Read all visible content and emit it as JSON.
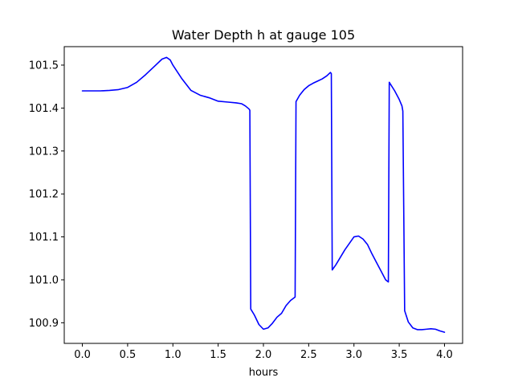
{
  "chart_data": {
    "type": "line",
    "title": "Water Depth h at gauge 105",
    "xlabel": "hours",
    "ylabel": "",
    "xlim": [
      -0.2,
      4.2
    ],
    "ylim": [
      100.852,
      101.543
    ],
    "grid": false,
    "legend": "none",
    "x_ticks": [
      0.0,
      0.5,
      1.0,
      1.5,
      2.0,
      2.5,
      3.0,
      3.5,
      4.0
    ],
    "x_tick_labels": [
      "0.0",
      "0.5",
      "1.0",
      "1.5",
      "2.0",
      "2.5",
      "3.0",
      "3.5",
      "4.0"
    ],
    "y_ticks": [
      100.9,
      101.0,
      101.1,
      101.2,
      101.3,
      101.4,
      101.5
    ],
    "y_tick_labels": [
      "100.9",
      "101.0",
      "101.1",
      "101.2",
      "101.3",
      "101.4",
      "101.5"
    ],
    "series": [
      {
        "color": "#0000ff",
        "x": [
          0.0,
          0.1,
          0.2,
          0.3,
          0.4,
          0.5,
          0.6,
          0.7,
          0.8,
          0.88,
          0.93,
          0.97,
          1.0,
          1.1,
          1.2,
          1.3,
          1.4,
          1.5,
          1.6,
          1.7,
          1.76,
          1.8,
          1.84,
          1.85,
          1.86,
          1.9,
          1.95,
          2.0,
          2.05,
          2.1,
          2.15,
          2.2,
          2.25,
          2.3,
          2.35,
          2.36,
          2.4,
          2.45,
          2.5,
          2.55,
          2.6,
          2.65,
          2.7,
          2.74,
          2.75,
          2.76,
          2.8,
          2.9,
          3.0,
          3.05,
          3.1,
          3.15,
          3.2,
          3.25,
          3.3,
          3.35,
          3.38,
          3.39,
          3.45,
          3.5,
          3.53,
          3.54,
          3.56,
          3.6,
          3.65,
          3.7,
          3.75,
          3.8,
          3.85,
          3.9,
          3.95,
          4.0
        ],
        "y": [
          101.44,
          101.44,
          101.44,
          101.441,
          101.443,
          101.448,
          101.46,
          101.478,
          101.498,
          101.514,
          101.518,
          101.512,
          101.5,
          101.468,
          101.441,
          101.43,
          101.424,
          101.416,
          101.414,
          101.412,
          101.41,
          101.405,
          101.398,
          101.395,
          100.932,
          100.918,
          100.896,
          100.885,
          100.888,
          100.899,
          100.913,
          100.922,
          100.94,
          100.952,
          100.96,
          101.415,
          101.43,
          101.443,
          101.452,
          101.458,
          101.463,
          101.468,
          101.475,
          101.483,
          101.48,
          101.023,
          101.035,
          101.07,
          101.1,
          101.102,
          101.095,
          101.082,
          101.06,
          101.04,
          101.02,
          101.0,
          100.995,
          101.46,
          101.44,
          101.42,
          101.405,
          101.393,
          100.928,
          100.902,
          100.888,
          100.884,
          100.884,
          100.885,
          100.886,
          100.885,
          100.881,
          100.878
        ]
      }
    ]
  }
}
